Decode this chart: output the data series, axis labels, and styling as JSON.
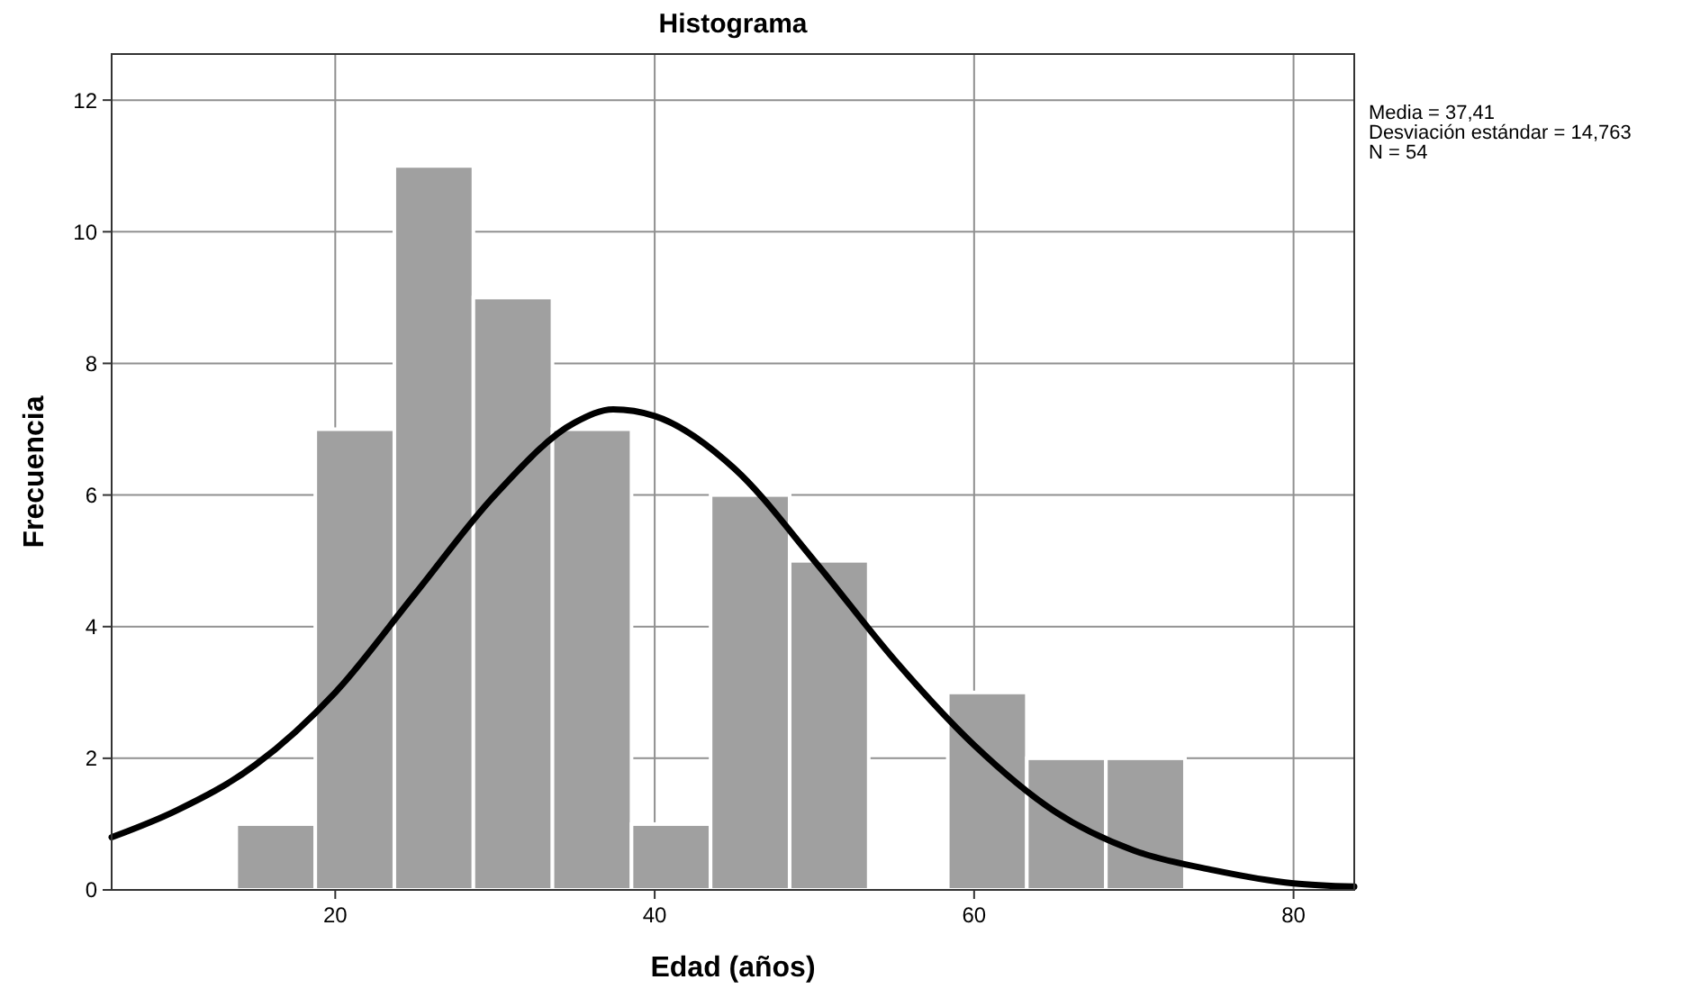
{
  "chart_data": {
    "type": "histogram",
    "title": "Histograma",
    "xlabel": "Edad  (años)",
    "ylabel": "Frecuencia",
    "xlim": [
      6,
      83.8
    ],
    "xticks": [
      20,
      40,
      60,
      80
    ],
    "ylim": [
      0,
      12.7
    ],
    "yticks": [
      0,
      2,
      4,
      6,
      8,
      10,
      12
    ],
    "grid": true,
    "series": [
      {
        "color": "#a0a0a0",
        "bins": [
          13.8,
          18.75,
          23.7,
          28.65,
          33.6,
          38.55,
          43.5,
          48.45,
          53.4,
          58.35,
          63.3,
          68.25,
          73.2
        ],
        "values": [
          1,
          7,
          11,
          9,
          7,
          1,
          6,
          5,
          0,
          3,
          2,
          2
        ]
      },
      {
        "type": "line",
        "color": "#000000",
        "x": [
          6,
          10,
          15,
          20,
          25,
          30,
          35,
          37.4,
          40,
          45,
          50,
          55,
          60,
          65,
          70,
          75,
          80,
          83.8
        ],
        "values": [
          0.8,
          1.2,
          1.9,
          3.0,
          4.5,
          6.0,
          7.1,
          7.3,
          7.2,
          6.4,
          5.0,
          3.5,
          2.2,
          1.2,
          0.6,
          0.3,
          0.1,
          0.05
        ]
      }
    ],
    "annotations": [
      "Media = 37,41",
      "Desviación estándar = 14,763",
      "N = 54"
    ]
  }
}
